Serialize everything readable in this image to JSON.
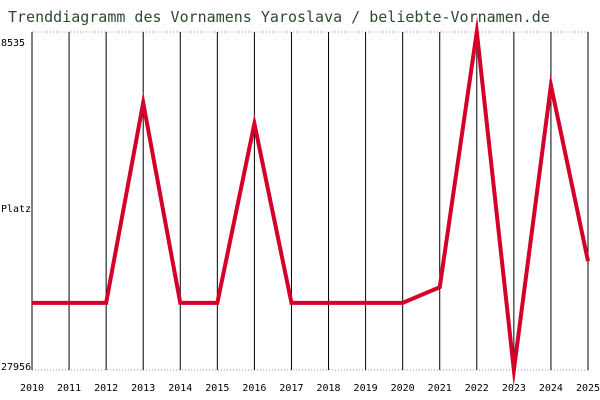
{
  "chart_data": {
    "type": "line",
    "title": "Trenddiagramm des Vornamens Yaroslava / beliebte-Vornamen.de",
    "ylabel": "Platz",
    "y_axis_reversed": true,
    "ylim": [
      8535,
      27956
    ],
    "y_tick_labels": [
      "8535",
      "27956"
    ],
    "x": [
      "2010",
      "2011",
      "2012",
      "2013",
      "2014",
      "2015",
      "2016",
      "2017",
      "2018",
      "2019",
      "2020",
      "2021",
      "2022",
      "2023",
      "2024",
      "2025"
    ],
    "series": [
      {
        "values": [
          24100,
          24100,
          24100,
          12600,
          24100,
          24100,
          13800,
          24100,
          24100,
          24100,
          24100,
          23200,
          8535,
          27956,
          11600,
          21700
        ]
      }
    ],
    "grid": true,
    "line_color": "#d4002a",
    "grid_color": "#000000",
    "title_color": "#2e4a2e"
  }
}
